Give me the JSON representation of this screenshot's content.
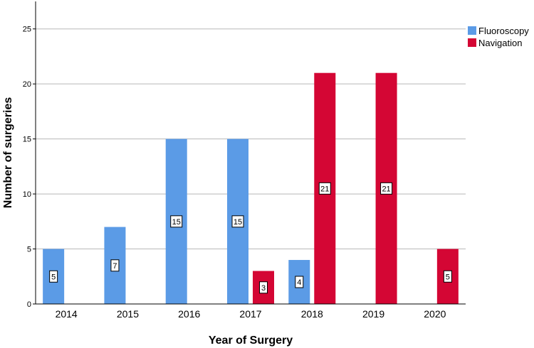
{
  "chart_data": {
    "type": "bar",
    "title": "",
    "xlabel": "Year of Surgery",
    "ylabel": "Number of surgeries",
    "categories": [
      "2014",
      "2015",
      "2016",
      "2017",
      "2018",
      "2019",
      "2020"
    ],
    "series": [
      {
        "name": "Fluoroscopy",
        "color": "#5b9be6",
        "values": [
          5,
          7,
          15,
          15,
          4,
          null,
          null
        ]
      },
      {
        "name": "Navigation",
        "color": "#d40634",
        "values": [
          null,
          null,
          null,
          3,
          21,
          21,
          5
        ]
      }
    ],
    "ylim": [
      0,
      27.5
    ],
    "yticks": [
      0,
      5,
      10,
      15,
      20,
      25
    ],
    "grid": true,
    "legend": "top-right"
  }
}
